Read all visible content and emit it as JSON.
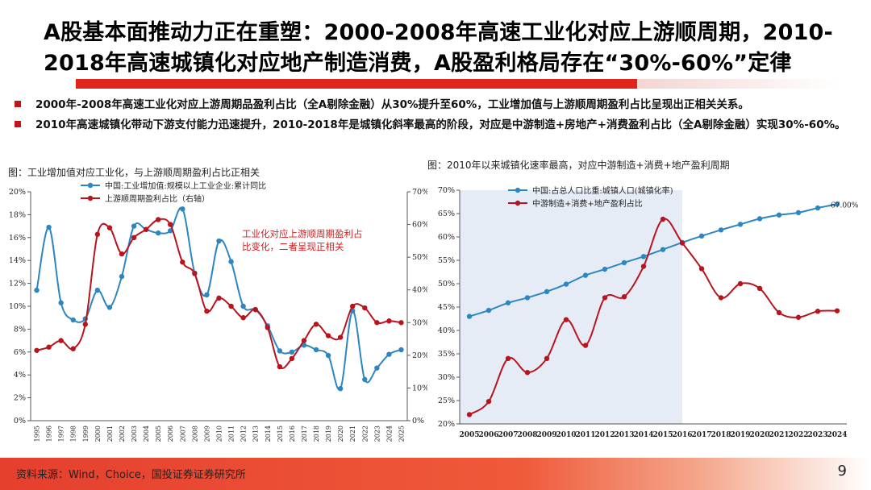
{
  "title": "A股基本面推动力正在重塑：2000-2008年高速工业化对应上游顺周期，2010-2018年高速城镇化对应地产制造消费，A股盈利格局存在“30%-60%”定律",
  "bullets": [
    "2000年-2008年高速工业化对应上游周期品盈利占比（全A剔除金融）从30%提升至60%，工业增加值与上游顺周期盈利占比呈现出正相关关系。",
    "2010年高速城镇化带动下游支付能力迅速提升，2010-2018年是城镇化斜率最高的阶段，对应是中游制造+房地产+消费盈利占比（全A剔除金融）实现30%-60%。"
  ],
  "footer": {
    "source": "资料来源：Wind，Choice，国投证券证券研究所",
    "page": "9"
  },
  "colors": {
    "blue": "#2e86c1",
    "red": "#b8141e",
    "accent": "#e0261b",
    "shade": "#e6ecf6"
  },
  "chart_data": [
    {
      "type": "line",
      "caption": "图：工业增加值对应工业化，与上游顺周期盈利占比正相关",
      "x": [
        "1995",
        "1996",
        "1997",
        "1998",
        "1999",
        "2000",
        "2001",
        "2002",
        "2003",
        "2004",
        "2005",
        "2006",
        "2007",
        "2008",
        "2009",
        "2010",
        "2011",
        "2012",
        "2013",
        "2014",
        "2015",
        "2016",
        "2017",
        "2018",
        "2019",
        "2020",
        "2021",
        "2022",
        "2023",
        "2024",
        "2025"
      ],
      "ylim": [
        0,
        20
      ],
      "y_ticks": [
        "0%",
        "2%",
        "4%",
        "6%",
        "8%",
        "10%",
        "12%",
        "14%",
        "16%",
        "18%",
        "20%"
      ],
      "y2lim": [
        0,
        70
      ],
      "y2_ticks": [
        "0%",
        "10%",
        "20%",
        "30%",
        "40%",
        "50%",
        "60%",
        "70%"
      ],
      "annotation": "工业化对应上游顺周期盈利占比变化，二者呈现正相关",
      "series": [
        {
          "name": "中国:工业增加值:规模以上工业企业:累计同比",
          "axis": "left",
          "color": "#2e86c1",
          "values": [
            11.4,
            16.9,
            10.3,
            8.8,
            8.9,
            11.4,
            9.9,
            12.6,
            17.0,
            16.7,
            16.4,
            16.6,
            18.5,
            12.9,
            11.0,
            15.7,
            13.9,
            10.0,
            9.7,
            8.3,
            6.1,
            6.0,
            6.6,
            6.2,
            5.7,
            2.8,
            9.6,
            3.6,
            4.6,
            5.8,
            6.2
          ]
        },
        {
          "name": "上游顺周期盈利占比（右轴）",
          "axis": "right",
          "color": "#b8141e",
          "values": [
            21.5,
            22.5,
            24.5,
            22.0,
            29.5,
            57.0,
            59.0,
            51.0,
            56.0,
            58.5,
            61.5,
            60.0,
            48.5,
            45.0,
            33.5,
            37.5,
            35.0,
            31.5,
            34.0,
            28.5,
            16.5,
            19.0,
            24.5,
            29.5,
            26.0,
            25.5,
            35.0,
            34.5,
            30.0,
            30.5,
            30.0
          ]
        }
      ]
    },
    {
      "type": "line",
      "caption": "图：2010年以来城镇化速率最高，对应中游制造+消费+地产盈利周期",
      "x": [
        "2005",
        "2006",
        "2007",
        "2008",
        "2009",
        "2010",
        "2011",
        "2012",
        "2013",
        "2014",
        "2015",
        "2016",
        "2017",
        "2018",
        "2019",
        "2020",
        "2021",
        "2022",
        "2023",
        "2024"
      ],
      "ylim": [
        20,
        70
      ],
      "y_ticks": [
        "20%",
        "25%",
        "30%",
        "35%",
        "40%",
        "45%",
        "50%",
        "55%",
        "60%",
        "65%",
        "70%"
      ],
      "shaded_range": [
        "2005",
        "2016"
      ],
      "end_label": "67.00%",
      "series": [
        {
          "name": "中国:占总人口比重:城镇人口(城镇化率)",
          "color": "#2e86c1",
          "values": [
            43.0,
            44.3,
            45.9,
            47.0,
            48.3,
            49.9,
            51.8,
            53.1,
            54.5,
            55.8,
            57.3,
            58.8,
            60.2,
            61.5,
            62.7,
            63.9,
            64.7,
            65.2,
            66.2,
            67.0
          ]
        },
        {
          "name": "中游制造+消费+地产盈利占比",
          "color": "#b8141e",
          "values": [
            22.0,
            24.8,
            34.0,
            31.0,
            34.0,
            42.3,
            36.8,
            47.0,
            47.2,
            53.7,
            63.8,
            58.7,
            53.2,
            47.0,
            50.0,
            49.0,
            43.8,
            42.8,
            44.1,
            44.2
          ]
        }
      ]
    }
  ]
}
